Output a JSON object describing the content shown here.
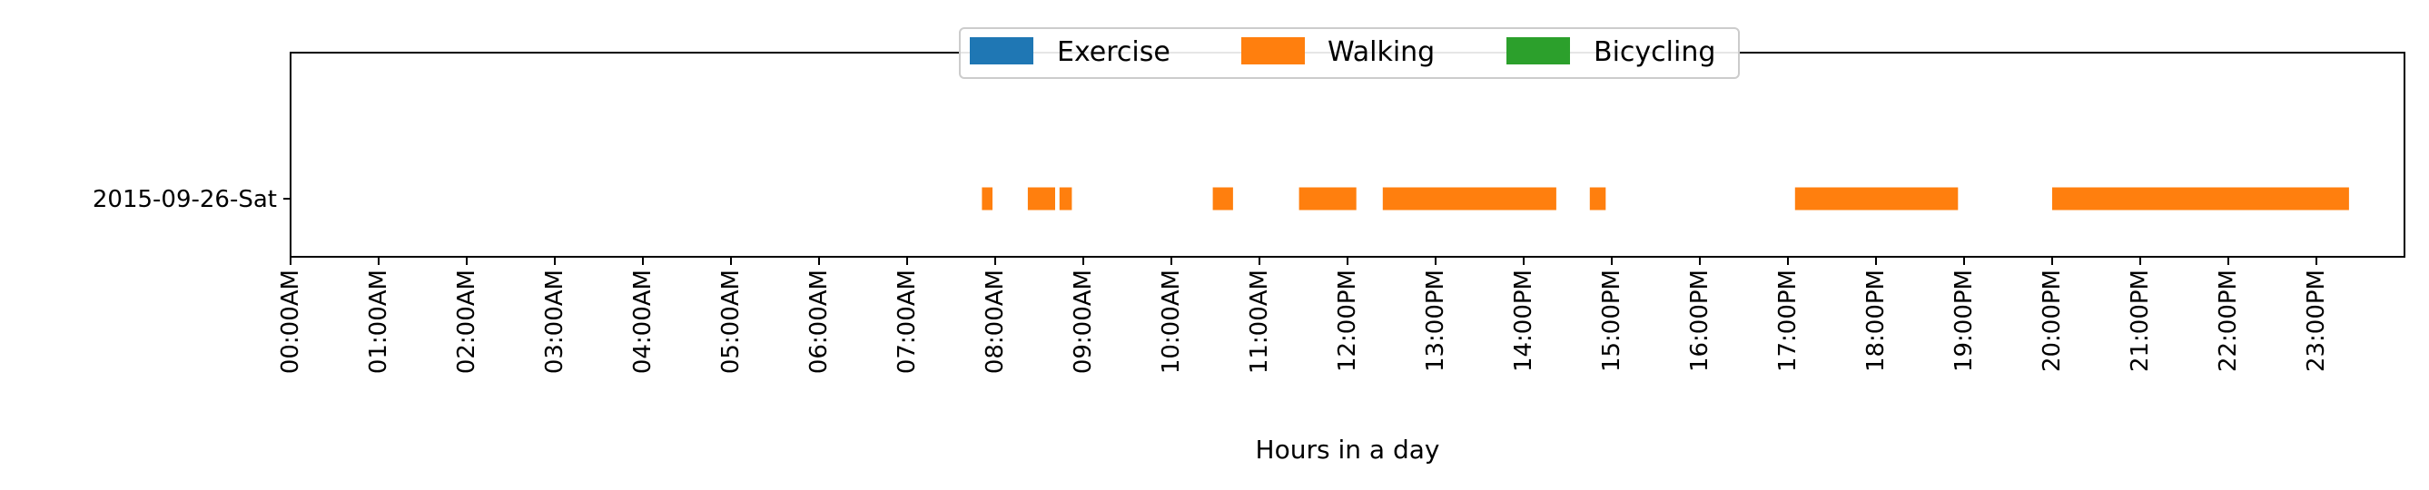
{
  "chart_data": {
    "type": "bar",
    "orientation": "horizontal",
    "title": "",
    "xlabel": "Hours in a day",
    "ylabel": "",
    "xlim": [
      0,
      24
    ],
    "x_unit": "hours",
    "grid": false,
    "legend_position": "top-center",
    "categories": [
      "2015-09-26-Sat"
    ],
    "x_tick_labels": [
      "00:00AM",
      "01:00AM",
      "02:00AM",
      "03:00AM",
      "04:00AM",
      "05:00AM",
      "06:00AM",
      "07:00AM",
      "08:00AM",
      "09:00AM",
      "10:00AM",
      "11:00AM",
      "12:00PM",
      "13:00PM",
      "14:00PM",
      "15:00PM",
      "16:00PM",
      "17:00PM",
      "18:00PM",
      "19:00PM",
      "20:00PM",
      "21:00PM",
      "22:00PM",
      "23:00PM"
    ],
    "series": [
      {
        "name": "Exercise",
        "color": "#1f77b4",
        "intervals": []
      },
      {
        "name": "Walking",
        "color": "#ff7f0e",
        "intervals": [
          [
            7.85,
            7.97
          ],
          [
            8.37,
            8.68
          ],
          [
            8.73,
            8.87
          ],
          [
            10.47,
            10.7
          ],
          [
            11.45,
            12.1
          ],
          [
            12.4,
            14.37
          ],
          [
            14.75,
            14.93
          ],
          [
            17.08,
            18.93
          ],
          [
            20.0,
            23.37
          ]
        ]
      },
      {
        "name": "Bicycling",
        "color": "#2ca02c",
        "intervals": []
      }
    ]
  }
}
